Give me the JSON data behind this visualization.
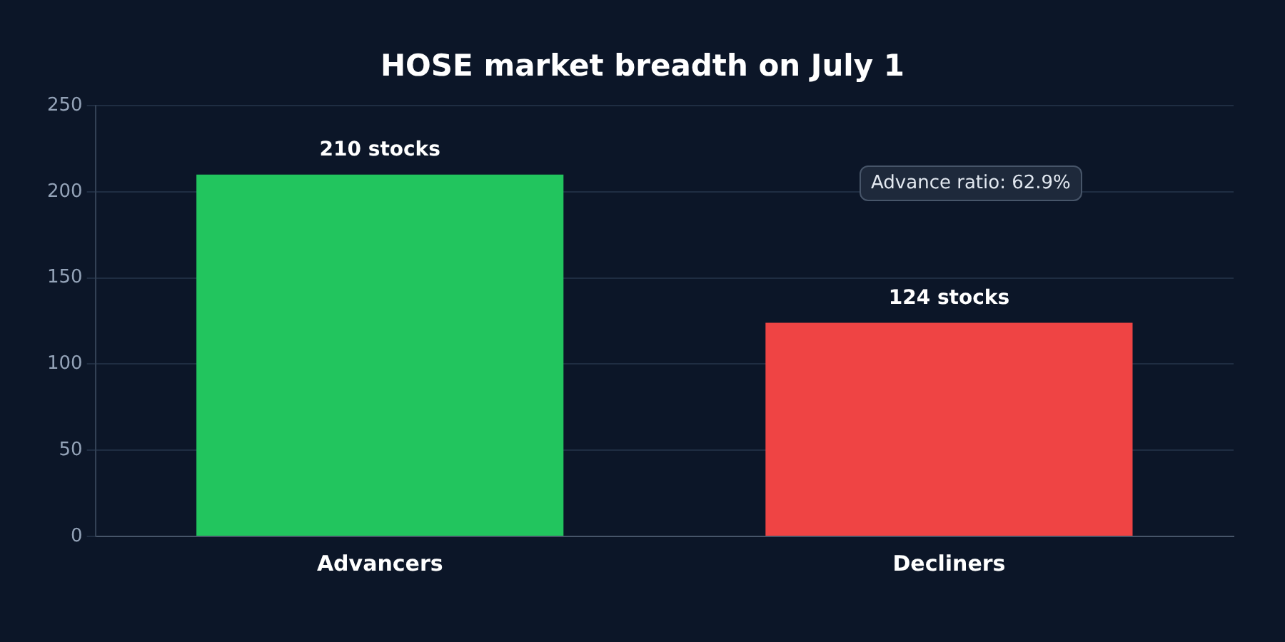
{
  "chart_data": {
    "type": "bar",
    "title": "HOSE market breadth on July 1",
    "categories": [
      "Advancers",
      "Decliners"
    ],
    "values": [
      210,
      124
    ],
    "colors": [
      "#22c55e",
      "#ef4444"
    ],
    "value_labels": [
      "210 stocks",
      "124 stocks"
    ],
    "ylim": [
      0,
      250
    ],
    "yticks": [
      0,
      50,
      100,
      150,
      200,
      250
    ],
    "grid": "y",
    "legend": false,
    "annotations": [
      "Advance ratio: 62.9%"
    ]
  }
}
